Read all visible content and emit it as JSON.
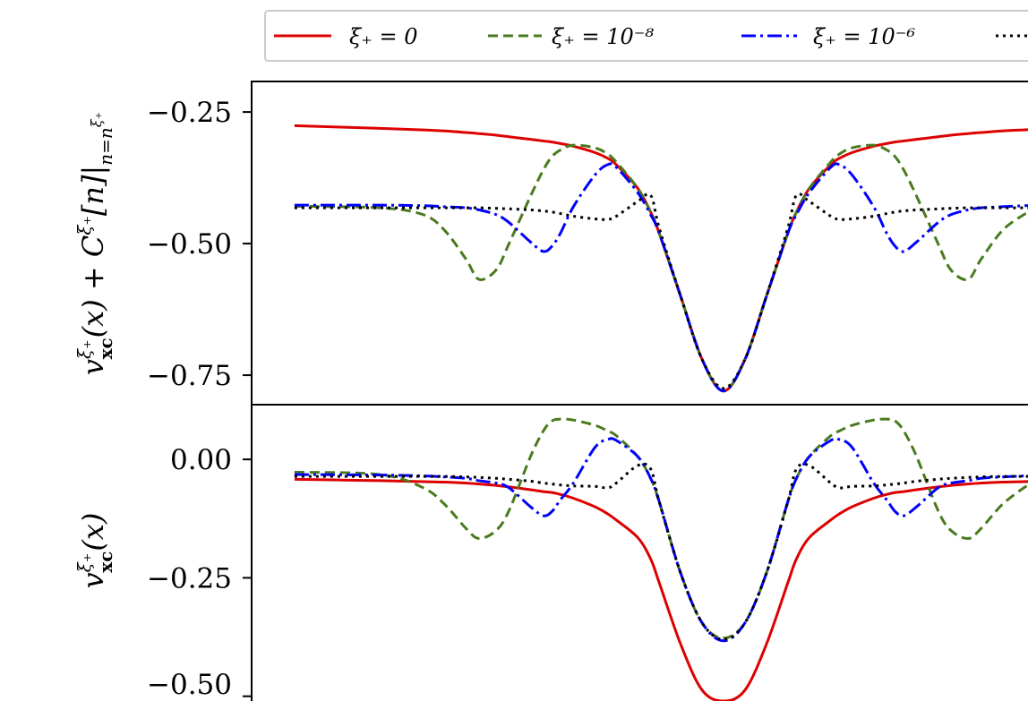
{
  "chart_data": {
    "type": "line",
    "symmetric_about_x0": true,
    "x_half": [
      -10,
      -8,
      -7,
      -6.5,
      -6,
      -5.7,
      -5.3,
      -5,
      -4.5,
      -4.2,
      -4,
      -3.8,
      -3.5,
      -3,
      -2.7,
      -2.5,
      -2,
      -1.7,
      -1.5,
      -1,
      -0.5,
      0
    ],
    "xlim": [
      -11,
      11
    ],
    "legend": {
      "placement": "top",
      "entries": [
        {
          "label": "ξ₊ = 0",
          "color": "#dd0000",
          "style": "solid"
        },
        {
          "label": "ξ₊ = 10⁻⁸",
          "color": "#4a7a1e",
          "style": "dashed"
        },
        {
          "label": "ξ₊ = 10⁻⁶",
          "color": "#0000ff",
          "style": "dashdot"
        },
        {
          "label": "",
          "color": "#000000",
          "style": "dotted"
        }
      ]
    },
    "panels": [
      {
        "name": "top",
        "ylabel": {
          "base": "v",
          "sup": "ξ₊",
          "sub": "xc",
          "mid": "(x) + C",
          "sup2": "ξ₊",
          "rest": "[n]|",
          "sub2": "n=n",
          "sup3": "ξ₊"
        },
        "ylim": [
          -0.806,
          -0.192
        ],
        "yticks": [
          {
            "value": -0.25,
            "label": "−0.25"
          },
          {
            "value": -0.5,
            "label": "−0.50"
          },
          {
            "value": -0.75,
            "label": "−0.75"
          }
        ],
        "series": [
          {
            "legend_index": 0,
            "y_half": [
              -0.276,
              -0.281,
              -0.284,
              -0.286,
              -0.289,
              -0.291,
              -0.294,
              -0.297,
              -0.302,
              -0.305,
              -0.307,
              -0.31,
              -0.315,
              -0.327,
              -0.338,
              -0.35,
              -0.395,
              -0.44,
              -0.48,
              -0.6,
              -0.72,
              -0.78
            ]
          },
          {
            "legend_index": 1,
            "y_half": [
              -0.429,
              -0.432,
              -0.445,
              -0.475,
              -0.53,
              -0.568,
              -0.55,
              -0.5,
              -0.41,
              -0.36,
              -0.335,
              -0.322,
              -0.313,
              -0.318,
              -0.33,
              -0.345,
              -0.395,
              -0.44,
              -0.48,
              -0.6,
              -0.72,
              -0.78
            ]
          },
          {
            "legend_index": 2,
            "y_half": [
              -0.427,
              -0.427,
              -0.428,
              -0.43,
              -0.432,
              -0.436,
              -0.445,
              -0.46,
              -0.497,
              -0.515,
              -0.505,
              -0.48,
              -0.43,
              -0.37,
              -0.35,
              -0.355,
              -0.403,
              -0.445,
              -0.48,
              -0.6,
              -0.72,
              -0.78
            ]
          },
          {
            "legend_index": 3,
            "y_half": [
              -0.432,
              -0.432,
              -0.432,
              -0.432,
              -0.432,
              -0.432,
              -0.433,
              -0.434,
              -0.436,
              -0.438,
              -0.44,
              -0.443,
              -0.448,
              -0.453,
              -0.454,
              -0.448,
              -0.42,
              -0.408,
              -0.47,
              -0.6,
              -0.72,
              -0.775
            ]
          }
        ]
      },
      {
        "name": "bottom",
        "ylabel": {
          "base": "v",
          "sup": "ξ₊",
          "sub": "xc",
          "mid": "(x)"
        },
        "ylim": [
          -0.51,
          0.1155
        ],
        "yticks": [
          {
            "value": 0,
            "label": "0.00"
          },
          {
            "value": -0.25,
            "label": "−0.25"
          },
          {
            "value": -0.5,
            "label": "−0.50"
          }
        ],
        "series": [
          {
            "legend_index": 0,
            "y_half": [
              -0.042,
              -0.045,
              -0.047,
              -0.048,
              -0.05,
              -0.052,
              -0.055,
              -0.058,
              -0.064,
              -0.068,
              -0.07,
              -0.074,
              -0.082,
              -0.1,
              -0.115,
              -0.128,
              -0.165,
              -0.21,
              -0.26,
              -0.39,
              -0.487,
              -0.55
            ]
          },
          {
            "legend_index": 1,
            "y_half": [
              -0.027,
              -0.032,
              -0.06,
              -0.095,
              -0.146,
              -0.167,
              -0.15,
              -0.108,
              0.006,
              0.06,
              0.081,
              0.085,
              0.083,
              0.072,
              0.06,
              0.05,
              0.006,
              -0.04,
              -0.089,
              -0.24,
              -0.345,
              -0.377
            ]
          },
          {
            "legend_index": 2,
            "y_half": [
              -0.032,
              -0.033,
              -0.035,
              -0.037,
              -0.04,
              -0.045,
              -0.05,
              -0.06,
              -0.1,
              -0.119,
              -0.11,
              -0.085,
              -0.05,
              0.025,
              0.042,
              0.04,
              0.006,
              -0.04,
              -0.089,
              -0.24,
              -0.345,
              -0.383
            ]
          },
          {
            "legend_index": 3,
            "y_half": [
              -0.036,
              -0.036,
              -0.036,
              -0.036,
              -0.037,
              -0.038,
              -0.04,
              -0.042,
              -0.046,
              -0.05,
              -0.052,
              -0.054,
              -0.056,
              -0.057,
              -0.06,
              -0.05,
              -0.013,
              -0.02,
              -0.089,
              -0.24,
              -0.345,
              -0.38
            ]
          }
        ]
      }
    ]
  }
}
